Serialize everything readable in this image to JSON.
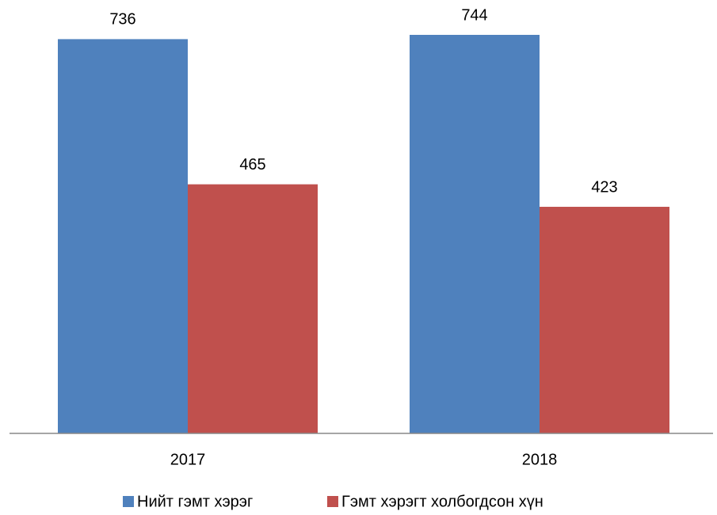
{
  "chart_data": {
    "type": "bar",
    "categories": [
      "2017",
      "2018"
    ],
    "series": [
      {
        "name": "Нийт гэмт хэрэг",
        "color": "#4f81bd",
        "values": [
          736,
          744
        ]
      },
      {
        "name": "Гэмт хэрэгт холбогдсон хүн",
        "color": "#c0504d",
        "values": [
          465,
          423
        ]
      }
    ],
    "legend": "bottom"
  }
}
